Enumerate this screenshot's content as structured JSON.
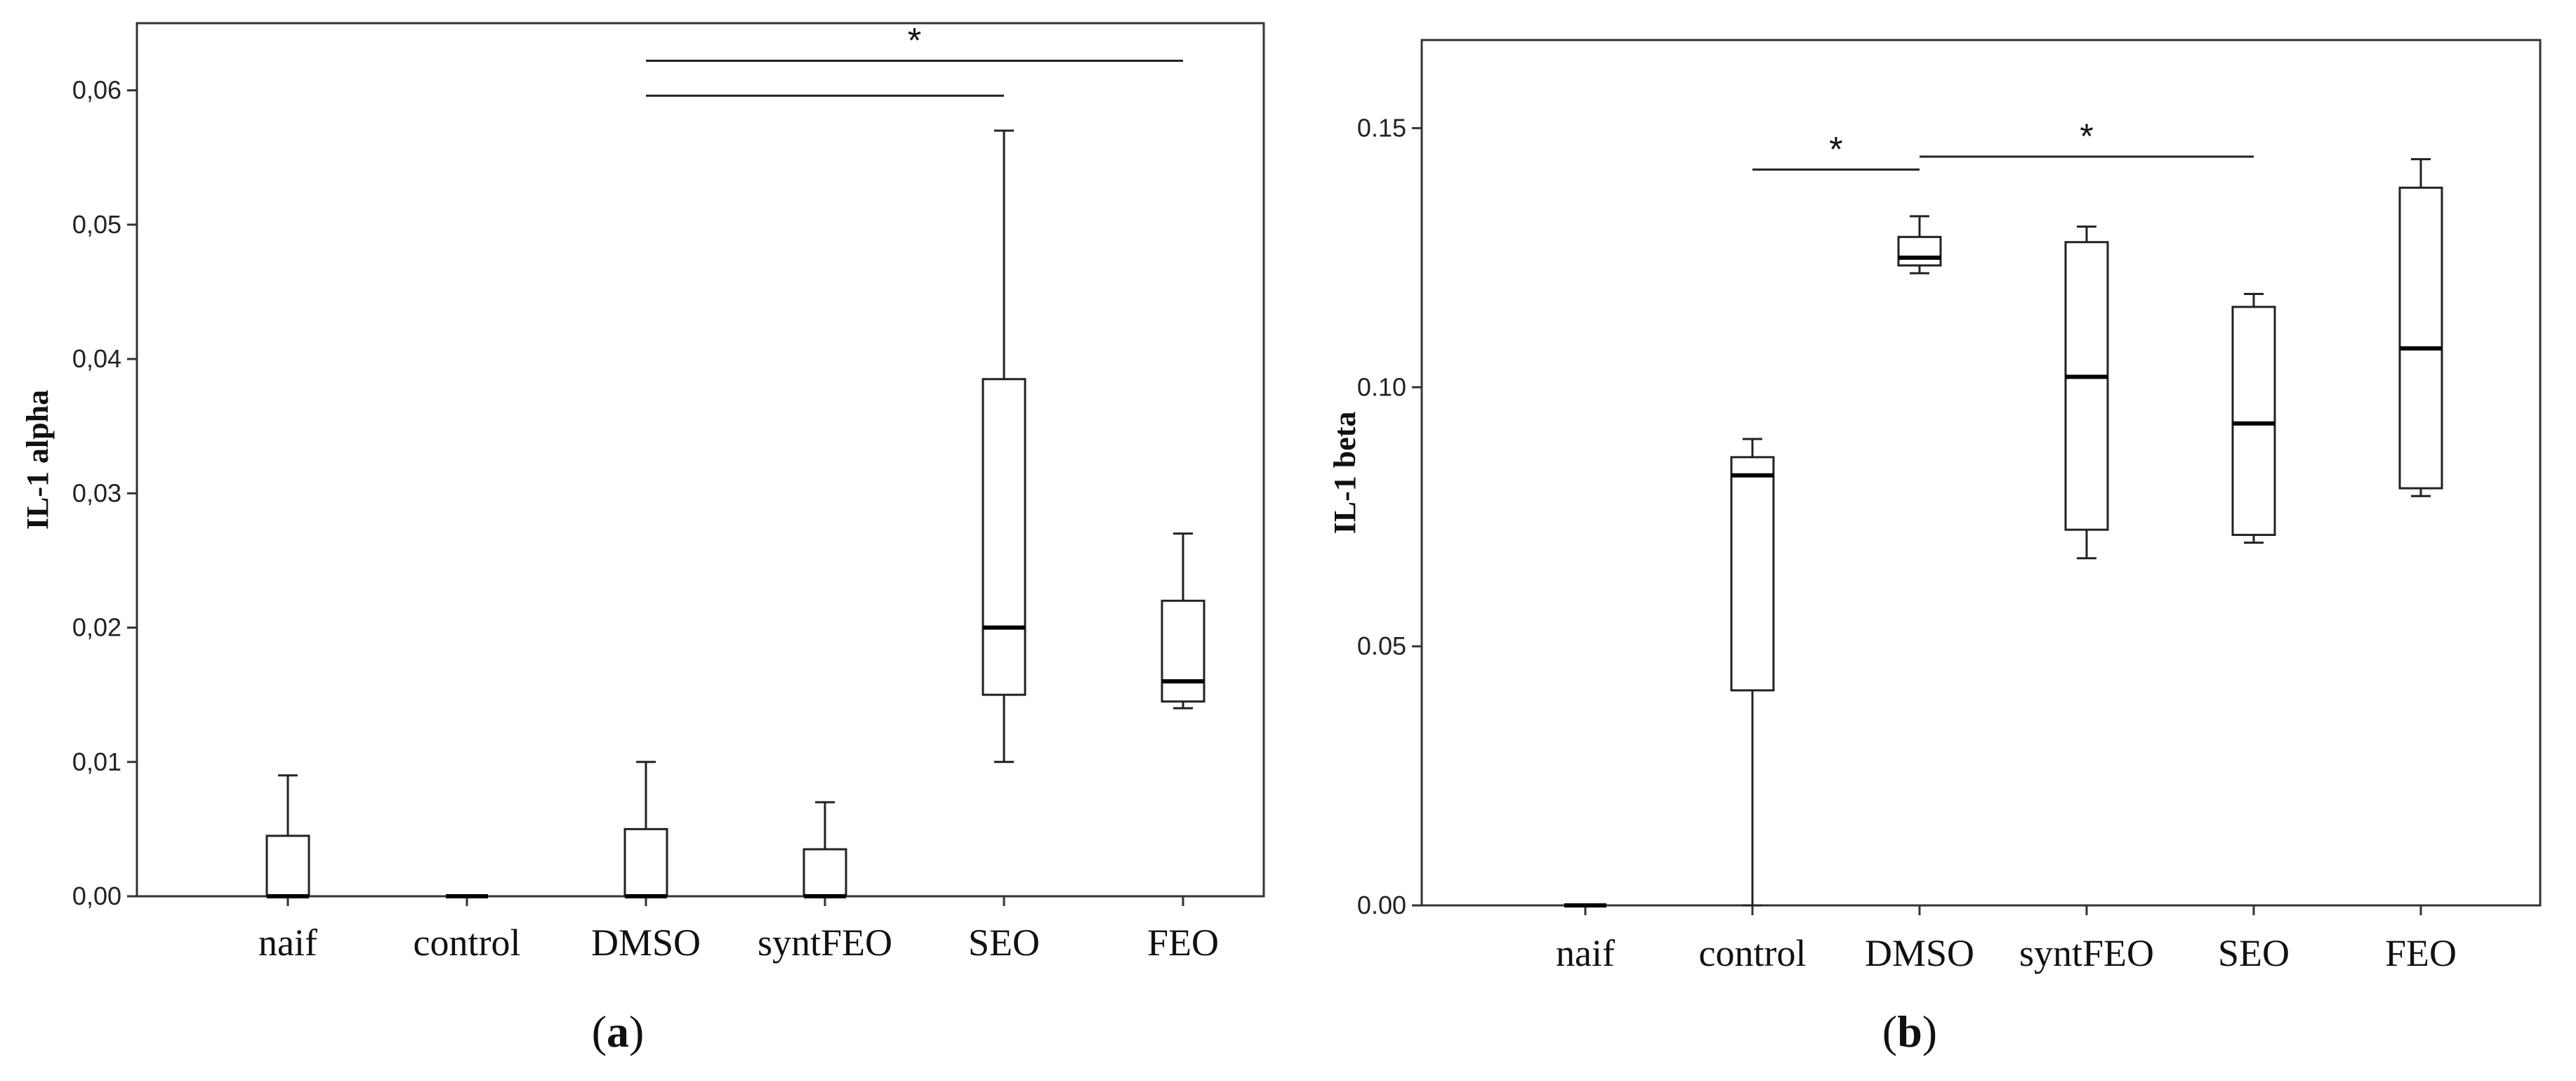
{
  "chart_data": [
    {
      "type": "boxplot",
      "panel_label": {
        "open": "(",
        "letter": "a",
        "close": ")"
      },
      "ylabel": "IL-1 alpha",
      "xlabel": "",
      "ylim": [
        0,
        0.065
      ],
      "yticks": [
        0.0,
        0.01,
        0.02,
        0.03,
        0.04,
        0.05,
        0.06
      ],
      "ytick_labels": [
        "0,00",
        "0,01",
        "0,02",
        "0,03",
        "0,04",
        "0,05",
        "0,06"
      ],
      "grid": false,
      "categories": [
        "naif",
        "control",
        "DMSO",
        "syntFEO",
        "SEO",
        "FEO"
      ],
      "boxes": [
        {
          "category": "naif",
          "min": 0.0,
          "q1": 0.0,
          "median": 0.0,
          "q3": 0.0045,
          "max": 0.009
        },
        {
          "category": "control",
          "min": 0.0,
          "q1": 0.0,
          "median": 0.0,
          "q3": 0.0,
          "max": 0.0
        },
        {
          "category": "DMSO",
          "min": 0.0,
          "q1": 0.0,
          "median": 0.0,
          "q3": 0.005,
          "max": 0.01
        },
        {
          "category": "syntFEO",
          "min": 0.0,
          "q1": 0.0,
          "median": 0.0,
          "q3": 0.0035,
          "max": 0.007
        },
        {
          "category": "SEO",
          "min": 0.01,
          "q1": 0.015,
          "median": 0.02,
          "q3": 0.0385,
          "max": 0.057
        },
        {
          "category": "FEO",
          "min": 0.014,
          "q1": 0.0145,
          "median": 0.016,
          "q3": 0.022,
          "max": 0.027
        }
      ],
      "annotations": [
        {
          "from": "DMSO",
          "to": "SEO",
          "y": 0.0596,
          "label": ""
        },
        {
          "from": "DMSO",
          "to": "FEO",
          "y": 0.0622,
          "label": "*"
        }
      ]
    },
    {
      "type": "boxplot",
      "panel_label": {
        "open": "(",
        "letter": "b",
        "close": ")"
      },
      "ylabel": "IL-1 beta",
      "xlabel": "",
      "ylim": [
        0,
        0.167
      ],
      "yticks": [
        0.0,
        0.05,
        0.1,
        0.15
      ],
      "ytick_labels": [
        "0.00",
        "0.05",
        "0.10",
        "0.15"
      ],
      "grid": false,
      "categories": [
        "naif",
        "control",
        "DMSO",
        "syntFEO",
        "SEO",
        "FEO"
      ],
      "boxes": [
        {
          "category": "naif",
          "min": 0.0,
          "q1": 0.0,
          "median": 0.0,
          "q3": 0.0,
          "max": 0.0
        },
        {
          "category": "control",
          "min": 0.0,
          "q1": 0.0415,
          "median": 0.083,
          "q3": 0.0865,
          "max": 0.09
        },
        {
          "category": "DMSO",
          "min": 0.122,
          "q1": 0.1235,
          "median": 0.125,
          "q3": 0.129,
          "max": 0.133
        },
        {
          "category": "syntFEO",
          "min": 0.067,
          "q1": 0.0725,
          "median": 0.102,
          "q3": 0.128,
          "max": 0.131
        },
        {
          "category": "SEO",
          "min": 0.07,
          "q1": 0.0715,
          "median": 0.093,
          "q3": 0.1155,
          "max": 0.118
        },
        {
          "category": "FEO",
          "min": 0.079,
          "q1": 0.0805,
          "median": 0.1075,
          "q3": 0.1385,
          "max": 0.144
        }
      ],
      "annotations": [
        {
          "from": "control",
          "to": "DMSO",
          "y": 0.142,
          "label": "*"
        },
        {
          "from": "DMSO",
          "to": "SEO",
          "y": 0.1445,
          "label": "*"
        }
      ]
    }
  ]
}
